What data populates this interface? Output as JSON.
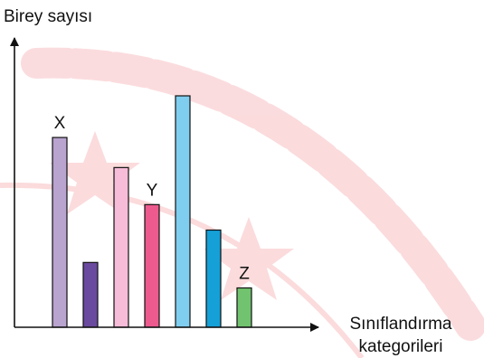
{
  "chart_data": {
    "type": "bar",
    "ylabel": "Birey sayısı",
    "xlabel_lines": [
      "Sınıflandırma",
      "kategorileri"
    ],
    "y_ticks_shown": false,
    "grid": false,
    "legend": "none",
    "ylim": [
      0,
      100
    ],
    "bars": [
      {
        "value": 82,
        "color": "#b9a3cf",
        "label": "X"
      },
      {
        "value": 28,
        "color": "#6a4a9e",
        "label": ""
      },
      {
        "value": 69,
        "color": "#f6bcd8",
        "label": ""
      },
      {
        "value": 53,
        "color": "#ec5a8e",
        "label": "Y"
      },
      {
        "value": 100,
        "color": "#7fcdef",
        "label": ""
      },
      {
        "value": 42,
        "color": "#15a0d8",
        "label": ""
      },
      {
        "value": 17,
        "color": "#72c36f",
        "label": "Z"
      }
    ]
  },
  "watermark": {
    "color": "#e8262f"
  }
}
